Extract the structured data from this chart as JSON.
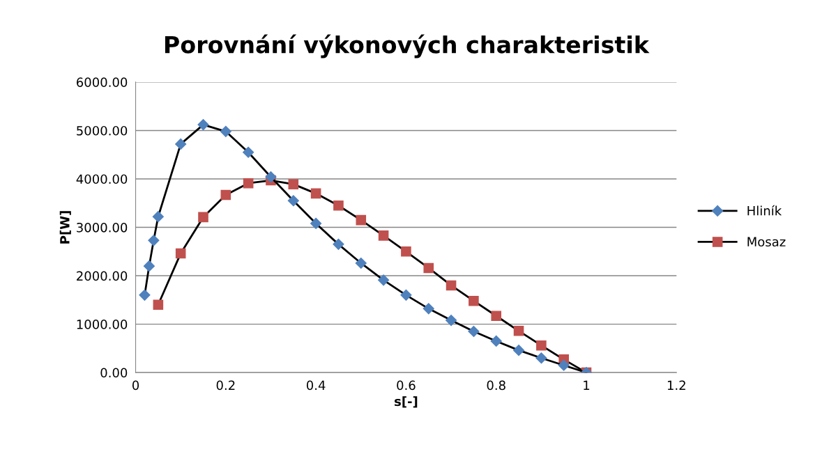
{
  "chart_data": {
    "type": "line",
    "title": "Porovnání výkonových charakteristik",
    "xlabel": "s[-]",
    "ylabel": "P[W]",
    "xlim": [
      0,
      1.2
    ],
    "xticks": [
      0,
      0.2,
      0.4,
      0.6,
      0.8,
      1,
      1.2
    ],
    "ylim": [
      0,
      6000
    ],
    "yticks": [
      {
        "value": 0,
        "label": "0.00"
      },
      {
        "value": 1000,
        "label": "1000.00"
      },
      {
        "value": 2000,
        "label": "2000.00"
      },
      {
        "value": 3000,
        "label": "3000.00"
      },
      {
        "value": 4000,
        "label": "4000.00"
      },
      {
        "value": 5000,
        "label": "5000.00"
      },
      {
        "value": 6000,
        "label": "6000.00"
      }
    ],
    "grid": "y",
    "legend": "right",
    "series": [
      {
        "name": "Hliník",
        "color": "#4f81bd",
        "marker": "diamond",
        "x": [
          0.02,
          0.03,
          0.04,
          0.05,
          0.1,
          0.15,
          0.2,
          0.25,
          0.3,
          0.35,
          0.4,
          0.45,
          0.5,
          0.55,
          0.6,
          0.65,
          0.7,
          0.75,
          0.8,
          0.85,
          0.9,
          0.95,
          1.0
        ],
        "values": [
          1600,
          2200,
          2730,
          3220,
          4720,
          5120,
          4980,
          4550,
          4040,
          3550,
          3080,
          2650,
          2260,
          1910,
          1600,
          1320,
          1080,
          850,
          650,
          460,
          300,
          150,
          0
        ]
      },
      {
        "name": "Mosaz",
        "color": "#c0504d",
        "marker": "square",
        "x": [
          0.05,
          0.1,
          0.15,
          0.2,
          0.25,
          0.3,
          0.35,
          0.4,
          0.45,
          0.5,
          0.55,
          0.6,
          0.65,
          0.7,
          0.75,
          0.8,
          0.85,
          0.9,
          0.95,
          1.0
        ],
        "values": [
          1400,
          2460,
          3210,
          3670,
          3910,
          3970,
          3890,
          3700,
          3450,
          3150,
          2830,
          2500,
          2160,
          1800,
          1480,
          1170,
          860,
          560,
          270,
          0
        ]
      }
    ]
  }
}
